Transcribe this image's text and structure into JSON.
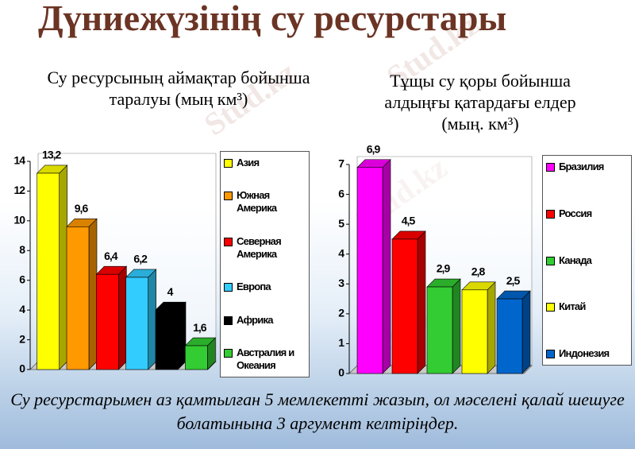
{
  "title": "Дүниежүзінің су ресурстары",
  "watermark": "Stud.kz",
  "task": "Су ресурстарымен аз қамтылған 5 мемлекетті жазып, ол мәселені қалай шешуге болатынына 3 аргумент келтіріңдер.",
  "chart_data": [
    {
      "type": "bar3d",
      "title": "Су ресурсының аймақтар бойынша таралуы (мың  км³)",
      "categories": [
        "Азия",
        "Южная Америка",
        "Северная Америка",
        "Европа",
        "Африка",
        "Австралия и Океания"
      ],
      "values": [
        13.2,
        9.6,
        6.4,
        6.2,
        4,
        1.6
      ],
      "value_labels": [
        "13,2",
        "9,6",
        "6,4",
        "6,2",
        "4",
        "1,6"
      ],
      "colors": [
        "#ffff00",
        "#ff9900",
        "#ff0000",
        "#33ccff",
        "#000000",
        "#33cc33"
      ],
      "ylim": [
        0,
        14
      ],
      "yticks": [
        0,
        2,
        4,
        6,
        8,
        10,
        12,
        14
      ],
      "legend": "right"
    },
    {
      "type": "bar3d",
      "title": "Тұщы су қоры бойынша алдыңғы қатардағы елдер (мың. км³)",
      "categories": [
        "Бразилия",
        "Россия",
        "Канада",
        "Китай",
        "Индонезия"
      ],
      "values": [
        6.9,
        4.5,
        2.9,
        2.8,
        2.5
      ],
      "value_labels": [
        "6,9",
        "4,5",
        "2,9",
        "2,8",
        "2,5"
      ],
      "colors": [
        "#ff00ff",
        "#ff0000",
        "#33cc33",
        "#ffff00",
        "#0066cc"
      ],
      "ylim": [
        0,
        7
      ],
      "yticks": [
        0,
        1,
        2,
        3,
        4,
        5,
        6,
        7
      ],
      "legend": "right"
    }
  ]
}
